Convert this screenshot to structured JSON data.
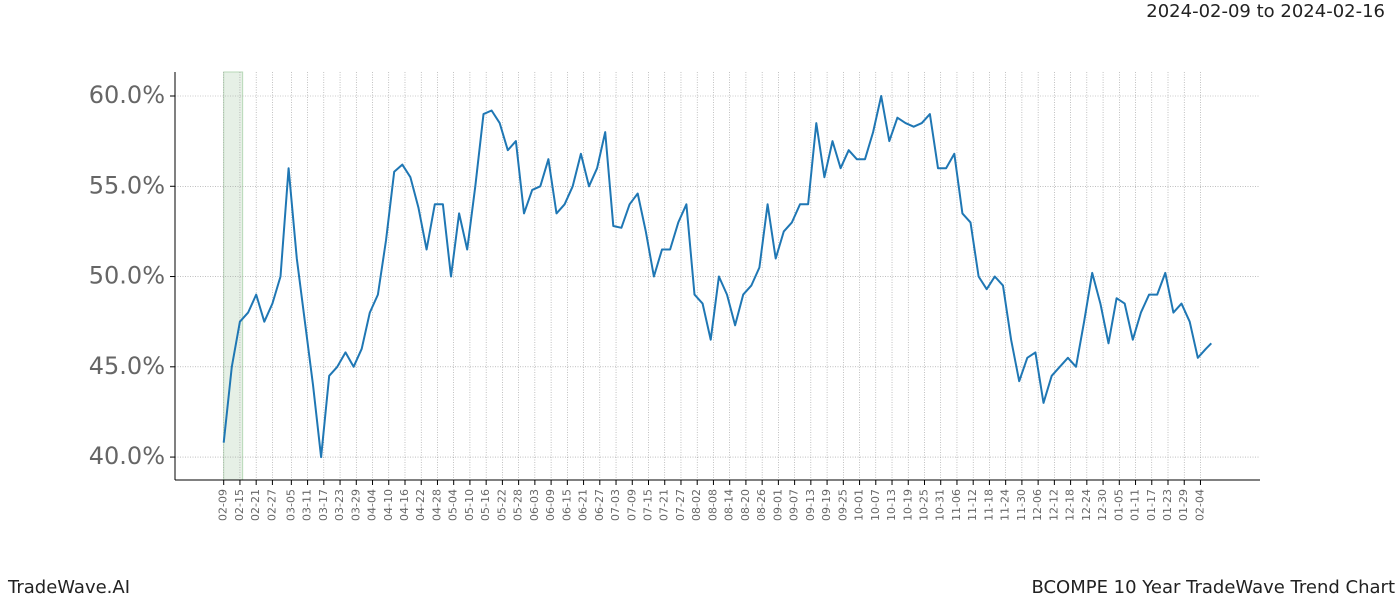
{
  "header": {
    "date_range": "2024-02-09 to 2024-02-16"
  },
  "footer": {
    "brand": "TradeWave.AI",
    "chart_name": "BCOMPE 10 Year TradeWave Trend Chart"
  },
  "chart_data": {
    "type": "line",
    "x": [
      "02-09",
      "02-12",
      "02-15",
      "02-18",
      "02-21",
      "02-24",
      "02-27",
      "03-01",
      "03-04",
      "03-07",
      "03-10",
      "03-13",
      "03-16",
      "03-19",
      "03-22",
      "03-25",
      "03-28",
      "03-31",
      "04-03",
      "04-06",
      "04-09",
      "04-12",
      "04-15",
      "04-18",
      "04-21",
      "04-24",
      "04-27",
      "04-30",
      "05-03",
      "05-06",
      "05-09",
      "05-12",
      "05-15",
      "05-18",
      "05-21",
      "05-24",
      "05-27",
      "05-30",
      "06-02",
      "06-05",
      "06-08",
      "06-11",
      "06-14",
      "06-17",
      "06-20",
      "06-23",
      "06-26",
      "06-29",
      "07-02",
      "07-05",
      "07-08",
      "07-11",
      "07-14",
      "07-17",
      "07-20",
      "07-23",
      "07-26",
      "07-29",
      "08-01",
      "08-04",
      "08-07",
      "08-10",
      "08-13",
      "08-16",
      "08-19",
      "08-22",
      "08-25",
      "08-28",
      "08-31",
      "09-03",
      "09-06",
      "09-09",
      "09-12",
      "09-15",
      "09-18",
      "09-21",
      "09-24",
      "09-27",
      "09-30",
      "10-03",
      "10-06",
      "10-09",
      "10-12",
      "10-15",
      "10-18",
      "10-21",
      "10-24",
      "10-27",
      "10-30",
      "11-02",
      "11-05",
      "11-08",
      "11-11",
      "11-14",
      "11-17",
      "11-20",
      "11-23",
      "11-26",
      "11-29",
      "12-02",
      "12-05",
      "12-08",
      "12-11",
      "12-14",
      "12-17",
      "12-20",
      "12-23",
      "12-26",
      "12-29",
      "01-01",
      "01-04",
      "01-07",
      "01-10",
      "01-13",
      "01-16",
      "01-19",
      "01-22",
      "01-25",
      "01-28",
      "01-31",
      "02-03",
      "02-06",
      "02-08"
    ],
    "series": [
      {
        "color": "#1f77b4",
        "values": [
          40.8,
          45.0,
          47.5,
          48.0,
          49.0,
          47.5,
          48.5,
          50.0,
          56.0,
          51.0,
          47.5,
          44.0,
          40.0,
          44.5,
          45.0,
          45.8,
          45.0,
          46.0,
          48.0,
          49.0,
          52.0,
          55.8,
          56.2,
          55.5,
          53.8,
          51.5,
          54.0,
          54.0,
          50.0,
          53.5,
          51.5,
          55.0,
          59.0,
          59.2,
          58.5,
          57.0,
          57.5,
          53.5,
          54.8,
          55.0,
          56.5,
          53.5,
          54.0,
          55.0,
          56.8,
          55.0,
          56.0,
          58.0,
          52.8,
          52.7,
          54.0,
          54.6,
          52.5,
          50.0,
          51.5,
          51.5,
          53.0,
          54.0,
          49.0,
          48.5,
          46.5,
          50.0,
          49.0,
          47.3,
          49.0,
          49.5,
          50.5,
          54.0,
          51.0,
          52.5,
          53.0,
          54.0,
          54.0,
          58.5,
          55.5,
          57.5,
          56.0,
          57.0,
          56.5,
          56.5,
          58.0,
          60.0,
          57.5,
          58.8,
          58.5,
          58.3,
          58.5,
          59.0,
          56.0,
          56.0,
          56.8,
          53.5,
          53.0,
          50.0,
          49.3,
          50.0,
          49.5,
          46.5,
          44.2,
          45.5,
          45.8,
          43.0,
          44.5,
          45.0,
          45.5,
          45.0,
          47.5,
          50.2,
          48.5,
          46.3,
          48.8,
          48.5,
          46.5,
          48.0,
          49.0,
          49.0,
          50.2,
          48.0,
          48.5,
          47.5,
          45.5,
          46.0,
          46.3
        ]
      }
    ],
    "xlim": [
      "01-22",
      "02-26"
    ],
    "xticks": [
      "02-09",
      "02-15",
      "02-21",
      "02-27",
      "03-05",
      "03-11",
      "03-17",
      "03-23",
      "03-29",
      "04-04",
      "04-10",
      "04-16",
      "04-22",
      "04-28",
      "05-04",
      "05-10",
      "05-16",
      "05-22",
      "05-28",
      "06-03",
      "06-09",
      "06-15",
      "06-21",
      "06-27",
      "07-03",
      "07-09",
      "07-15",
      "07-21",
      "07-27",
      "08-02",
      "08-08",
      "08-14",
      "08-20",
      "08-26",
      "09-01",
      "09-07",
      "09-13",
      "09-19",
      "09-25",
      "10-01",
      "10-07",
      "10-13",
      "10-19",
      "10-25",
      "10-31",
      "11-06",
      "11-12",
      "11-18",
      "11-24",
      "11-30",
      "12-06",
      "12-12",
      "12-18",
      "12-24",
      "12-30",
      "01-05",
      "01-11",
      "01-17",
      "01-23",
      "01-29",
      "02-04"
    ],
    "ylim": [
      38.73,
      61.33
    ],
    "yticks": [
      {
        "value": 40,
        "label": "40.0%"
      },
      {
        "value": 45,
        "label": "45.0%"
      },
      {
        "value": 50,
        "label": "50.0%"
      },
      {
        "value": 55,
        "label": "55.0%"
      },
      {
        "value": 60,
        "label": "60.0%"
      }
    ],
    "highlight": [
      "02-09",
      "02-16"
    ],
    "highlight_color": "#e6f0e6",
    "grid": true
  }
}
